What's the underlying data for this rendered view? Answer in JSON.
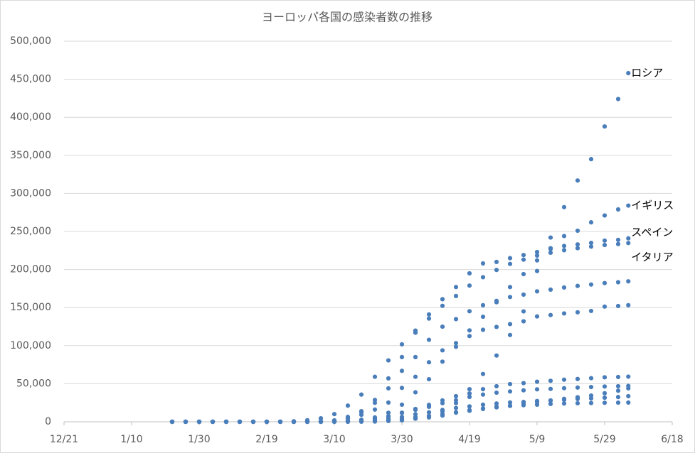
{
  "chart_data": {
    "type": "scatter",
    "title": "ヨーロッパ各国の感染者数の推移",
    "color": "#4a7ebb",
    "grid": true,
    "x": [
      "1/22",
      "1/26",
      "1/30",
      "2/3",
      "2/7",
      "2/11",
      "2/15",
      "2/19",
      "2/23",
      "2/27",
      "3/2",
      "3/6",
      "3/10",
      "3/14",
      "3/18",
      "3/22",
      "3/26",
      "3/30",
      "4/3",
      "4/7",
      "4/11",
      "4/15",
      "4/19",
      "4/23",
      "4/27",
      "5/1",
      "5/5",
      "5/9",
      "5/13",
      "5/17",
      "5/21",
      "5/25",
      "5/29",
      "6/2",
      "6/5"
    ],
    "xlim": [
      "12/21",
      "6/18"
    ],
    "xticks": [
      "12/21",
      "1/10",
      "1/30",
      "2/19",
      "3/10",
      "3/30",
      "4/19",
      "5/9",
      "5/29",
      "6/18"
    ],
    "ylim": [
      0,
      500000
    ],
    "yticks": [
      0,
      {
        "value": 50000,
        "label": "50,000"
      },
      {
        "value": 100000,
        "label": "100,000"
      },
      {
        "value": 150000,
        "label": "150,000"
      },
      {
        "value": 200000,
        "label": "200,000"
      },
      {
        "value": 250000,
        "label": "250,000"
      },
      {
        "value": 300000,
        "label": "300,000"
      },
      {
        "value": 350000,
        "label": "350,000"
      },
      {
        "value": 400000,
        "label": "400,000"
      },
      {
        "value": 450000,
        "label": "450,000"
      },
      {
        "value": 500000,
        "label": "500,000"
      }
    ],
    "series": [
      {
        "name": "ロシア",
        "values": [
          0,
          0,
          0,
          0,
          0,
          0,
          0,
          0,
          0,
          0,
          0,
          0,
          0,
          0,
          100,
          300,
          1000,
          1800,
          4000,
          7500,
          13500,
          24500,
          42800,
          62800,
          87000,
          114000,
          145000,
          198000,
          242000,
          282000,
          317000,
          345000,
          388000,
          424000,
          458000
        ]
      },
      {
        "name": "イギリス",
        "values": [
          0,
          0,
          0,
          0,
          0,
          0,
          0,
          0,
          0,
          0,
          40,
          160,
          380,
          1140,
          2600,
          5700,
          11800,
          22400,
          38700,
          55900,
          79000,
          98500,
          120000,
          138000,
          157000,
          177000,
          194000,
          212000,
          227000,
          244000,
          251000,
          262000,
          271000,
          279000,
          284000
        ]
      },
      {
        "name": "スペイン",
        "values": [
          0,
          0,
          0,
          0,
          0,
          0,
          0,
          0,
          0,
          0,
          120,
          400,
          1700,
          6400,
          13900,
          28600,
          57000,
          85000,
          117000,
          141000,
          161000,
          177000,
          195000,
          208000,
          210000,
          215000,
          219000,
          223000,
          228000,
          231000,
          233000,
          235000,
          238000,
          239000,
          241000
        ]
      },
      {
        "name": "イタリア",
        "values": [
          0,
          0,
          0,
          0,
          0,
          0,
          0,
          0,
          150,
          650,
          2000,
          4600,
          10100,
          21200,
          35700,
          59100,
          80600,
          101700,
          119800,
          135600,
          152300,
          165200,
          178900,
          189900,
          199400,
          207400,
          213000,
          218300,
          222100,
          225400,
          228000,
          230100,
          232200,
          233500,
          234800
        ]
      },
      {
        "values": [
          0,
          0,
          0,
          0,
          0,
          0,
          0,
          0,
          0,
          0,
          150,
          670,
          1500,
          4600,
          12300,
          24900,
          43900,
          66900,
          85000,
          107700,
          124900,
          134800,
          145200,
          153100,
          158800,
          163900,
          167000,
          171300,
          173600,
          176400,
          178500,
          180300,
          182200,
          183300,
          184500
        ]
      },
      {
        "values": [
          0,
          0,
          0,
          0,
          0,
          0,
          0,
          0,
          0,
          0,
          0,
          0,
          1800,
          4500,
          9100,
          16000,
          25200,
          44500,
          59100,
          78200,
          93800,
          103300,
          112600,
          120800,
          124600,
          128300,
          132000,
          138400,
          140200,
          142300,
          143800,
          145600,
          151300,
          152100,
          153100
        ]
      },
      {
        "values": [
          0,
          0,
          0,
          0,
          0,
          0,
          0,
          0,
          0,
          0,
          0,
          0,
          270,
          690,
          1800,
          3400,
          6200,
          11900,
          16800,
          22200,
          28000,
          33600,
          37200,
          42800,
          46700,
          49500,
          50800,
          52600,
          53800,
          55300,
          56200,
          57300,
          58400,
          58800,
          59300
        ]
      },
      {
        "values": [
          0,
          0,
          0,
          0,
          0,
          0,
          0,
          0,
          0,
          0,
          0,
          0,
          380,
          960,
          2050,
          4200,
          7400,
          11700,
          15700,
          19600,
          24400,
          28200,
          32600,
          35700,
          38200,
          39800,
          41300,
          42600,
          43200,
          44100,
          44900,
          45600,
          46300,
          46700,
          47100
        ]
      },
      {
        "values": [
          0,
          0,
          0,
          0,
          0,
          0,
          0,
          0,
          0,
          0,
          0,
          0,
          350,
          960,
          1300,
          1900,
          2800,
          4000,
          6000,
          7700,
          10100,
          11900,
          14400,
          16800,
          18900,
          21100,
          23900,
          25900,
          27900,
          30100,
          32200,
          34400,
          37500,
          40800,
          43900
        ]
      },
      {
        "values": [
          0,
          0,
          0,
          0,
          0,
          0,
          0,
          0,
          0,
          0,
          0,
          0,
          40,
          170,
          640,
          1600,
          3500,
          6400,
          9900,
          12400,
          15500,
          18100,
          20200,
          22400,
          24000,
          25300,
          26000,
          27300,
          28000,
          28800,
          29900,
          30700,
          31600,
          32500,
          33600
        ]
      },
      {
        "values": [
          0,
          0,
          0,
          0,
          0,
          0,
          0,
          0,
          0,
          0,
          0,
          0,
          30,
          130,
          560,
          900,
          1800,
          2600,
          4300,
          5700,
          8100,
          12500,
          15300,
          17600,
          19600,
          20800,
          21800,
          22500,
          23400,
          24000,
          24300,
          24600,
          24900,
          25100,
          25200
        ]
      }
    ]
  }
}
